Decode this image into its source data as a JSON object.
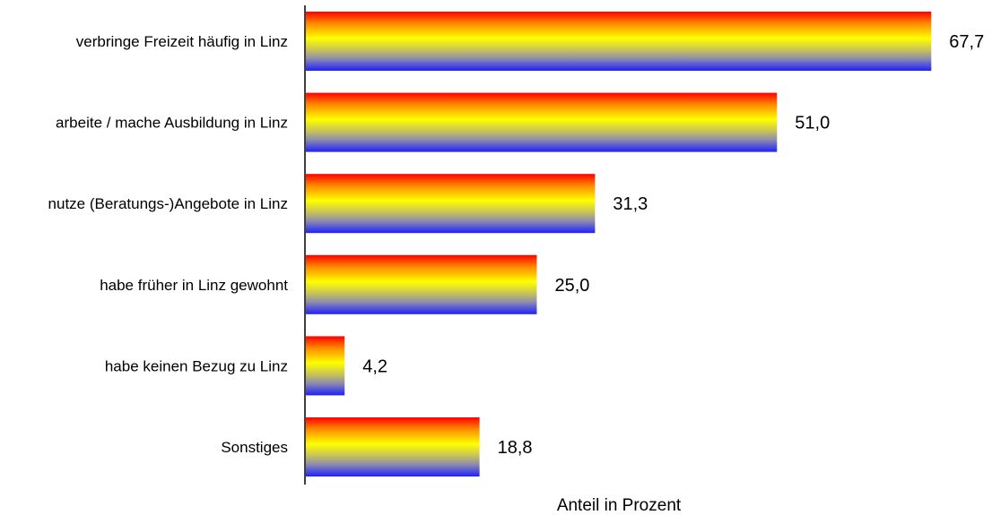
{
  "chart_data": {
    "type": "bar",
    "orientation": "horizontal",
    "title": "",
    "xlabel": "Anteil in Prozent",
    "ylabel": "",
    "categories": [
      "verbringe Freizeit häufig in Linz",
      "arbeite / mache Ausbildung in Linz",
      "nutze (Beratungs-)Angebote in Linz",
      "habe früher in Linz gewohnt",
      "habe keinen Bezug zu Linz",
      "Sonstiges"
    ],
    "values": [
      67.7,
      51.0,
      31.3,
      25.0,
      4.2,
      18.8
    ],
    "value_labels": [
      "67,7",
      "51,0",
      "31,3",
      "25,0",
      "4,2",
      "18,8"
    ],
    "xlim": [
      0,
      100
    ],
    "grid": false,
    "legend": "none",
    "bar_gradient_colors": [
      "#ff0000",
      "#ffff00",
      "#0000ff"
    ]
  }
}
